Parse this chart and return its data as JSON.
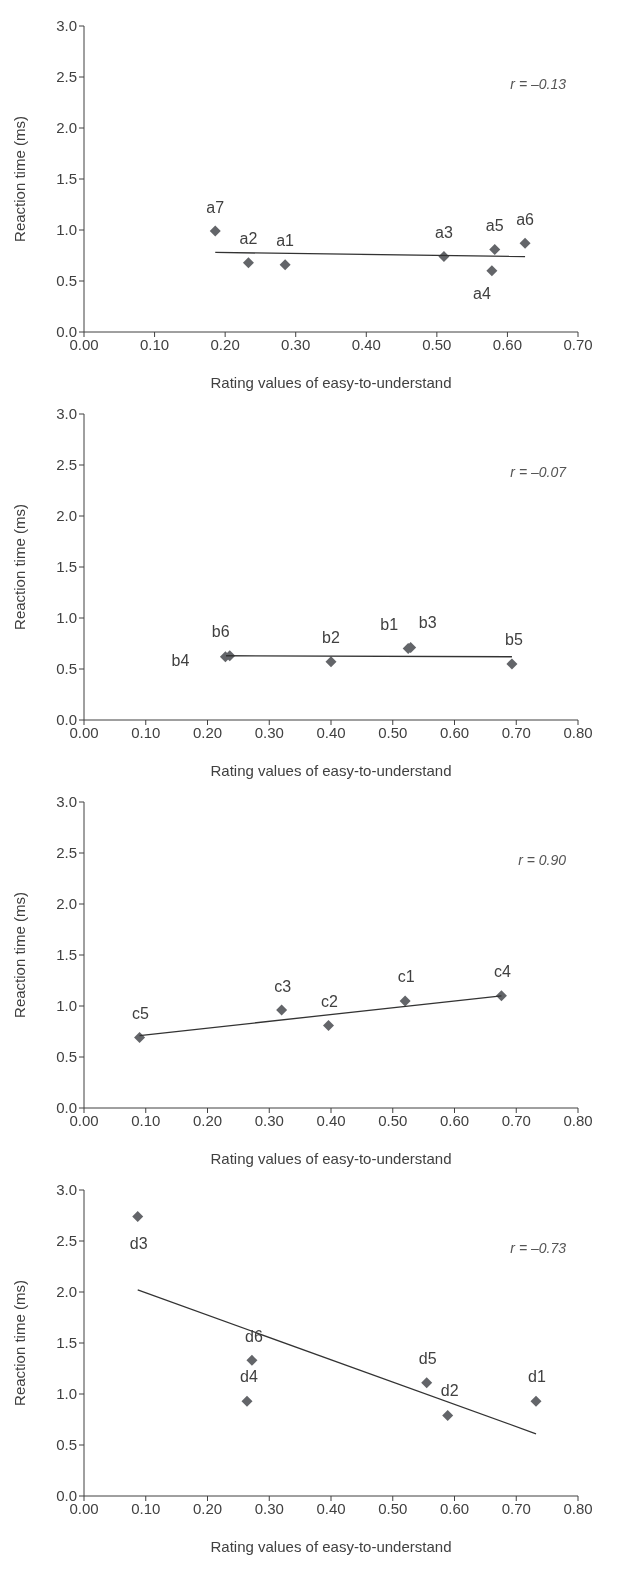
{
  "chart_data": [
    {
      "type": "scatter",
      "xlabel": "Rating values of easy-to-understand",
      "ylabel": "Reaction time (ms)",
      "xlim": [
        0,
        0.7
      ],
      "xticks": [
        {
          "value": 0,
          "label": "0.00"
        },
        {
          "value": 0.1,
          "label": "0.10"
        },
        {
          "value": 0.2,
          "label": "0.20"
        },
        {
          "value": 0.3,
          "label": "0.30"
        },
        {
          "value": 0.4,
          "label": "0.40"
        },
        {
          "value": 0.5,
          "label": "0.50"
        },
        {
          "value": 0.6,
          "label": "0.60"
        },
        {
          "value": 0.7,
          "label": "0.70"
        }
      ],
      "ylim": [
        0,
        3
      ],
      "yticks": [
        {
          "value": 0,
          "label": "0.0"
        },
        {
          "value": 0.5,
          "label": "0.5"
        },
        {
          "value": 1,
          "label": "1.0"
        },
        {
          "value": 1.5,
          "label": "1.5"
        },
        {
          "value": 2,
          "label": "2.0"
        },
        {
          "value": 2.5,
          "label": "2.5"
        },
        {
          "value": 3,
          "label": "3.0"
        }
      ],
      "grid": false,
      "marker": "diamond",
      "series": [
        {
          "color": "#636569",
          "x": [
            0.186,
            0.233,
            0.285,
            0.51,
            0.582,
            0.578,
            0.625
          ],
          "values": [
            0.99,
            0.68,
            0.66,
            0.74,
            0.81,
            0.6,
            0.87
          ]
        },
        {
          "type": "line",
          "marker": "none",
          "color": "#333333",
          "x": [
            0.186,
            0.625
          ],
          "values": [
            0.78,
            0.74
          ]
        }
      ],
      "annotations": [
        {
          "text": "a7",
          "x": 0.186,
          "y": 0.99
        },
        {
          "text": "a2",
          "x": 0.233,
          "y": 0.68
        },
        {
          "text": "a1",
          "x": 0.285,
          "y": 0.66
        },
        {
          "text": "a3",
          "x": 0.51,
          "y": 0.74
        },
        {
          "text": "a5",
          "x": 0.582,
          "y": 0.81
        },
        {
          "text": "a4",
          "x": 0.578,
          "y": 0.6
        },
        {
          "text": "a6",
          "x": 0.625,
          "y": 0.87
        },
        "r = –0.13"
      ]
    },
    {
      "type": "scatter",
      "xlabel": "Rating values of easy-to-understand",
      "ylabel": "Reaction time (ms)",
      "xlim": [
        0,
        0.8
      ],
      "xticks": [
        {
          "value": 0,
          "label": "0.00"
        },
        {
          "value": 0.1,
          "label": "0.10"
        },
        {
          "value": 0.2,
          "label": "0.20"
        },
        {
          "value": 0.3,
          "label": "0.30"
        },
        {
          "value": 0.4,
          "label": "0.40"
        },
        {
          "value": 0.5,
          "label": "0.50"
        },
        {
          "value": 0.6,
          "label": "0.60"
        },
        {
          "value": 0.7,
          "label": "0.70"
        },
        {
          "value": 0.8,
          "label": "0.80"
        }
      ],
      "ylim": [
        0,
        3
      ],
      "yticks": [
        {
          "value": 0,
          "label": "0.0"
        },
        {
          "value": 0.5,
          "label": "0.5"
        },
        {
          "value": 1,
          "label": "1.0"
        },
        {
          "value": 1.5,
          "label": "1.5"
        },
        {
          "value": 2,
          "label": "2.0"
        },
        {
          "value": 2.5,
          "label": "2.5"
        },
        {
          "value": 3,
          "label": "3.0"
        }
      ],
      "grid": false,
      "marker": "diamond",
      "series": [
        {
          "color": "#636569",
          "x": [
            0.229,
            0.236,
            0.4,
            0.525,
            0.529,
            0.693
          ],
          "values": [
            0.62,
            0.63,
            0.57,
            0.7,
            0.71,
            0.55
          ]
        },
        {
          "type": "line",
          "marker": "none",
          "color": "#333333",
          "x": [
            0.23,
            0.693
          ],
          "values": [
            0.63,
            0.62
          ]
        }
      ],
      "annotations": [
        {
          "text": "b4",
          "x": 0.229,
          "y": 0.62
        },
        {
          "text": "b6",
          "x": 0.236,
          "y": 0.63
        },
        {
          "text": "b2",
          "x": 0.4,
          "y": 0.57
        },
        {
          "text": "b1",
          "x": 0.525,
          "y": 0.7
        },
        {
          "text": "b3",
          "x": 0.529,
          "y": 0.71
        },
        {
          "text": "b5",
          "x": 0.693,
          "y": 0.55
        },
        "r = –0.07"
      ]
    },
    {
      "type": "scatter",
      "xlabel": "Rating values of easy-to-understand",
      "ylabel": "Reaction time (ms)",
      "xlim": [
        0,
        0.8
      ],
      "xticks": [
        {
          "value": 0,
          "label": "0.00"
        },
        {
          "value": 0.1,
          "label": "0.10"
        },
        {
          "value": 0.2,
          "label": "0.20"
        },
        {
          "value": 0.3,
          "label": "0.30"
        },
        {
          "value": 0.4,
          "label": "0.40"
        },
        {
          "value": 0.5,
          "label": "0.50"
        },
        {
          "value": 0.6,
          "label": "0.60"
        },
        {
          "value": 0.7,
          "label": "0.70"
        },
        {
          "value": 0.8,
          "label": "0.80"
        }
      ],
      "ylim": [
        0,
        3
      ],
      "yticks": [
        {
          "value": 0,
          "label": "0.0"
        },
        {
          "value": 0.5,
          "label": "0.5"
        },
        {
          "value": 1,
          "label": "1.0"
        },
        {
          "value": 1.5,
          "label": "1.5"
        },
        {
          "value": 2,
          "label": "2.0"
        },
        {
          "value": 2.5,
          "label": "2.5"
        },
        {
          "value": 3,
          "label": "3.0"
        }
      ],
      "grid": false,
      "marker": "diamond",
      "series": [
        {
          "color": "#636569",
          "x": [
            0.09,
            0.32,
            0.396,
            0.52,
            0.676
          ],
          "values": [
            0.69,
            0.96,
            0.81,
            1.05,
            1.1
          ]
        },
        {
          "type": "line",
          "marker": "none",
          "color": "#333333",
          "x": [
            0.09,
            0.676
          ],
          "values": [
            0.71,
            1.1
          ]
        }
      ],
      "annotations": [
        {
          "text": "c5",
          "x": 0.09,
          "y": 0.69
        },
        {
          "text": "c3",
          "x": 0.32,
          "y": 0.96
        },
        {
          "text": "c2",
          "x": 0.396,
          "y": 0.81
        },
        {
          "text": "c1",
          "x": 0.52,
          "y": 1.05
        },
        {
          "text": "c4",
          "x": 0.676,
          "y": 1.1
        },
        "r = 0.90"
      ]
    },
    {
      "type": "scatter",
      "xlabel": "Rating values of easy-to-understand",
      "ylabel": "Reaction time (ms)",
      "xlim": [
        0,
        0.8
      ],
      "xticks": [
        {
          "value": 0,
          "label": "0.00"
        },
        {
          "value": 0.1,
          "label": "0.10"
        },
        {
          "value": 0.2,
          "label": "0.20"
        },
        {
          "value": 0.3,
          "label": "0.30"
        },
        {
          "value": 0.4,
          "label": "0.40"
        },
        {
          "value": 0.5,
          "label": "0.50"
        },
        {
          "value": 0.6,
          "label": "0.60"
        },
        {
          "value": 0.7,
          "label": "0.70"
        },
        {
          "value": 0.8,
          "label": "0.80"
        }
      ],
      "ylim": [
        0,
        3
      ],
      "yticks": [
        {
          "value": 0,
          "label": "0.0"
        },
        {
          "value": 0.5,
          "label": "0.5"
        },
        {
          "value": 1,
          "label": "1.0"
        },
        {
          "value": 1.5,
          "label": "1.5"
        },
        {
          "value": 2,
          "label": "2.0"
        },
        {
          "value": 2.5,
          "label": "2.5"
        },
        {
          "value": 3,
          "label": "3.0"
        }
      ],
      "grid": false,
      "marker": "diamond",
      "series": [
        {
          "color": "#636569",
          "x": [
            0.087,
            0.272,
            0.264,
            0.555,
            0.589,
            0.732
          ],
          "values": [
            2.74,
            1.33,
            0.93,
            1.11,
            0.79,
            0.93
          ]
        },
        {
          "type": "line",
          "marker": "none",
          "color": "#333333",
          "x": [
            0.087,
            0.732
          ],
          "values": [
            2.02,
            0.61
          ]
        }
      ],
      "annotations": [
        {
          "text": "d3",
          "x": 0.087,
          "y": 2.74
        },
        {
          "text": "d6",
          "x": 0.272,
          "y": 1.33
        },
        {
          "text": "d4",
          "x": 0.264,
          "y": 0.93
        },
        {
          "text": "d5",
          "x": 0.555,
          "y": 1.11
        },
        {
          "text": "d2",
          "x": 0.589,
          "y": 0.79
        },
        {
          "text": "d1",
          "x": 0.732,
          "y": 0.93
        },
        "r = –0.73"
      ]
    }
  ]
}
